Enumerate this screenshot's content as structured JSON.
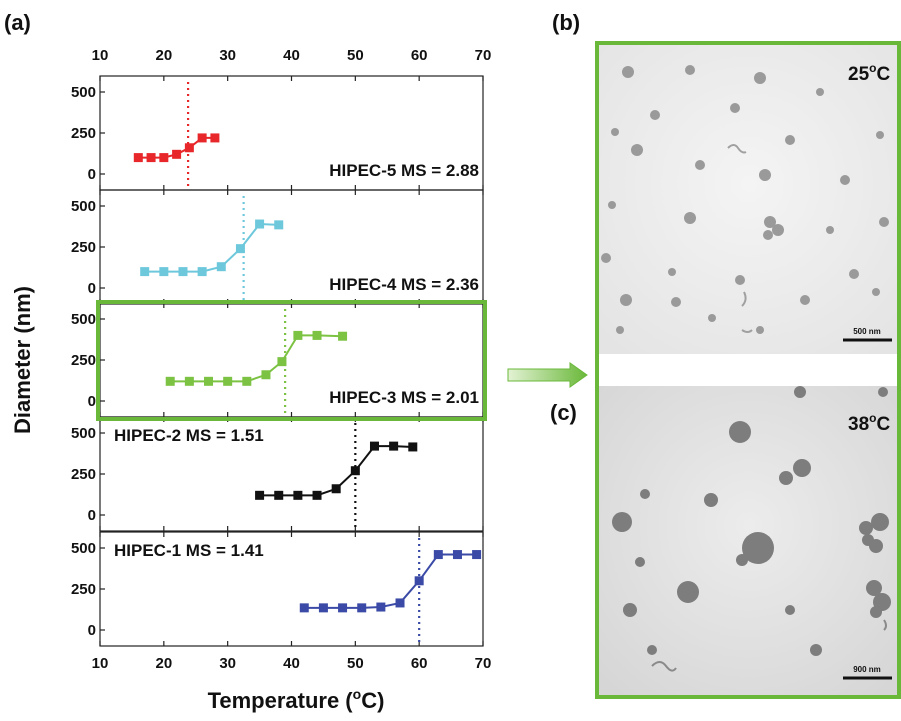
{
  "labels": {
    "panel_a": "(a)",
    "panel_b": "(b)",
    "panel_c": "(c)",
    "x_title": "Temperature (",
    "x_title_sup": "o",
    "x_title_end": "C)",
    "y_title": "Diameter (nm)",
    "temp_b": "25",
    "temp_c": "38",
    "temp_sup": "o",
    "temp_unit": "C",
    "scale_b": "500 nm",
    "scale_c": "900 nm"
  },
  "chart_data": {
    "type": "line",
    "xlabel": "Temperature (oC)",
    "ylabel": "Diameter (nm)",
    "xlim": [
      10,
      70
    ],
    "xticks": [
      10,
      20,
      30,
      40,
      50,
      60,
      70
    ],
    "ylim": [
      0,
      500
    ],
    "yticks": [
      0,
      250,
      500
    ],
    "panels": [
      {
        "name": "HIPEC-5",
        "ms_label": "MS = 2.88",
        "color": "#e8272b",
        "transition": 23.8,
        "x": [
          16,
          18,
          20,
          22,
          24,
          26,
          28
        ],
        "y": [
          100,
          100,
          100,
          120,
          160,
          220,
          220
        ]
      },
      {
        "name": "HIPEC-4",
        "ms_label": "MS = 2.36",
        "color": "#6ec8dc",
        "transition": 32.5,
        "x": [
          17,
          20,
          23,
          26,
          29,
          32,
          35,
          38
        ],
        "y": [
          100,
          100,
          100,
          100,
          130,
          240,
          390,
          385
        ]
      },
      {
        "name": "HIPEC-3",
        "ms_label": "MS = 2.01",
        "color": "#7cc243",
        "transition": 39,
        "x": [
          21,
          24,
          27,
          30,
          33,
          36,
          38.5,
          41,
          44,
          48
        ],
        "y": [
          120,
          120,
          120,
          120,
          120,
          160,
          240,
          400,
          400,
          395
        ]
      },
      {
        "name": "HIPEC-2",
        "ms_label": "MS = 1.51",
        "color": "#111111",
        "transition": 50,
        "x": [
          35,
          38,
          41,
          44,
          47,
          50,
          53,
          56,
          59
        ],
        "y": [
          120,
          120,
          120,
          120,
          160,
          270,
          420,
          420,
          415
        ]
      },
      {
        "name": "HIPEC-1",
        "ms_label": "MS = 1.41",
        "color": "#3a4aa6",
        "transition": 60,
        "x": [
          42,
          45,
          48,
          51,
          54,
          57,
          60,
          63,
          66,
          69
        ],
        "y": [
          135,
          135,
          135,
          135,
          140,
          165,
          300,
          460,
          460,
          460
        ]
      }
    ]
  }
}
